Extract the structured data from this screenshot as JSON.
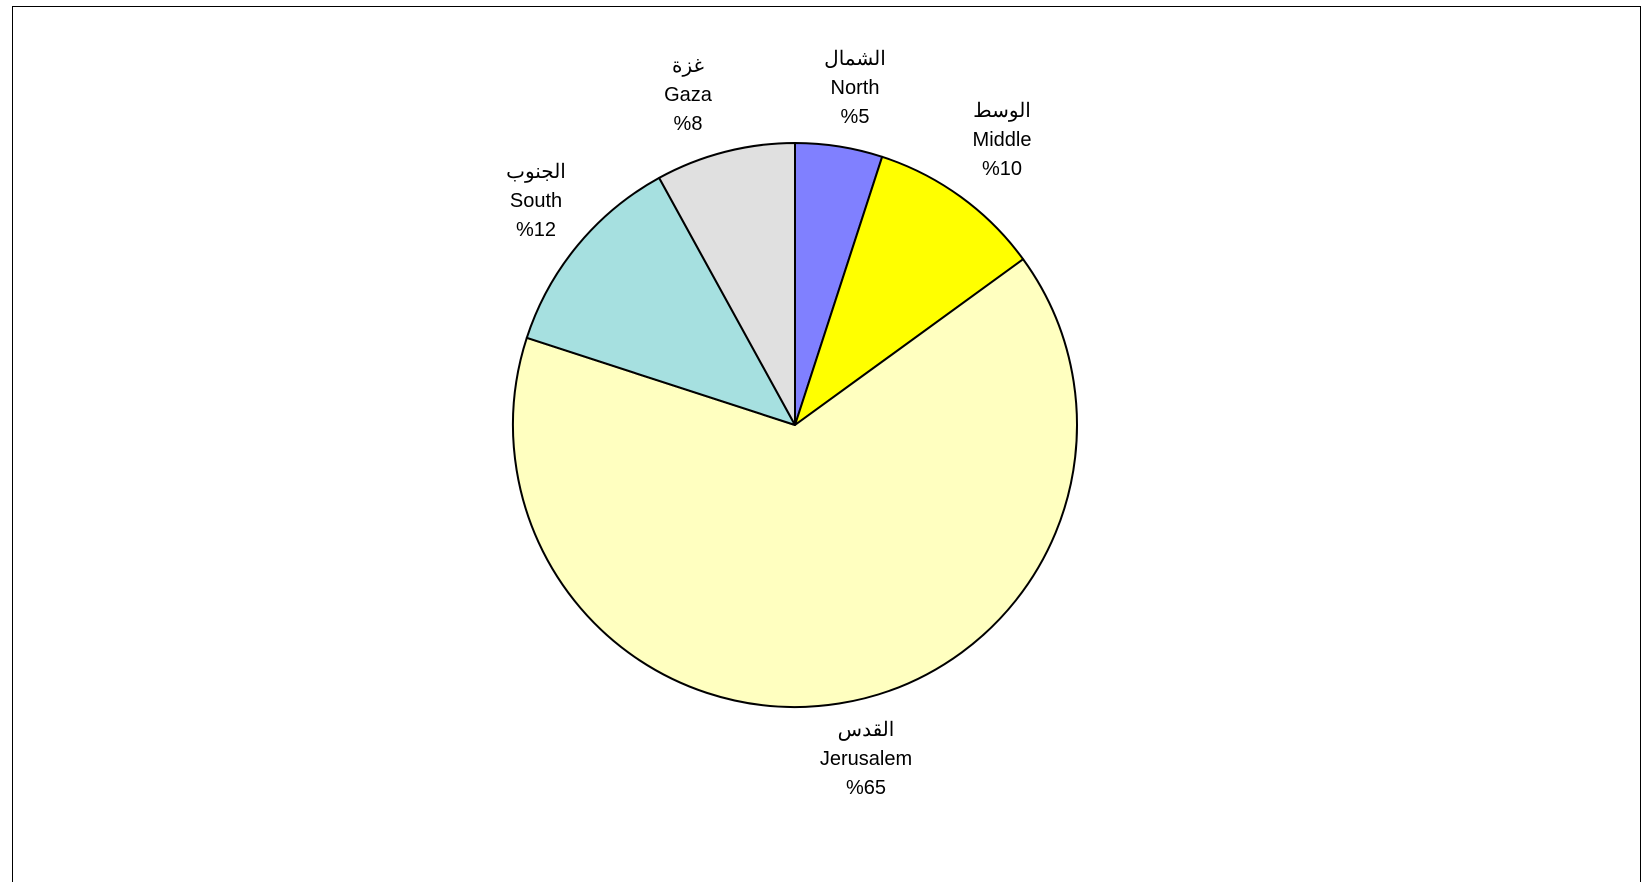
{
  "chart_data": {
    "type": "pie",
    "title": "",
    "series": [
      {
        "values": [
          5,
          10,
          65,
          12,
          8
        ],
        "labels_ar": [
          "الشمال",
          "الوسط",
          "القدس",
          "الجنوب",
          "غزة"
        ],
        "labels_en": [
          "North",
          "Middle",
          "Jerusalem",
          "South",
          "Gaza"
        ],
        "percent_labels": [
          "%5",
          "%10",
          "%65",
          "%12",
          "%8"
        ],
        "colors": [
          "#8080ff",
          "#ffff00",
          "#ffffc0",
          "#a6e0e0",
          "#e0e0e0"
        ]
      }
    ],
    "start": "12 o'clock",
    "direction": "clockwise",
    "legend": "none"
  }
}
